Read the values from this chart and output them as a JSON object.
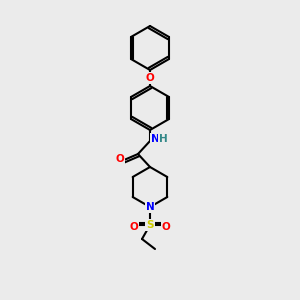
{
  "bg_color": "#ebebeb",
  "bond_color": "#000000",
  "bond_lw": 1.5,
  "atom_colors": {
    "O": "#ff0000",
    "N": "#0000ff",
    "S": "#cccc00",
    "H": "#338888"
  },
  "font_size": 7.5
}
